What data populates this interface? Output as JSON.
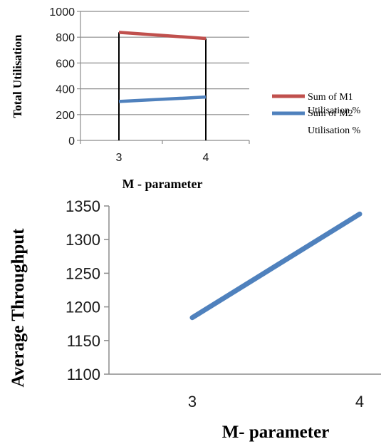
{
  "chart_data": [
    {
      "type": "line",
      "title": "",
      "xlabel": "M - parameter",
      "ylabel": "Total Utilisation",
      "categories": [
        "3",
        "4"
      ],
      "ylim": [
        0,
        1000
      ],
      "yticks": [
        "0",
        "200",
        "400",
        "600",
        "800",
        "1000"
      ],
      "grid": true,
      "drop_lines": true,
      "legend_position": "right",
      "series": [
        {
          "name_line1": "Sum of M1",
          "name_line2": "Utilisation %",
          "values": [
            838,
            790
          ],
          "color": "#c0504d"
        },
        {
          "name_line1": "Sum of M2",
          "name_line2": "Utilisation %",
          "values": [
            302,
            336
          ],
          "color": "#4f81bd"
        }
      ]
    },
    {
      "type": "line",
      "title": "",
      "xlabel": "M- parameter",
      "ylabel": "Average Throughput",
      "categories": [
        "3",
        "4"
      ],
      "ylim": [
        1100,
        1350
      ],
      "yticks": [
        "1100",
        "1150",
        "1200",
        "1250",
        "1300",
        "1350"
      ],
      "grid": false,
      "legend_position": "none",
      "series": [
        {
          "values": [
            1184,
            1338
          ],
          "color": "#4f81bd"
        }
      ]
    }
  ]
}
